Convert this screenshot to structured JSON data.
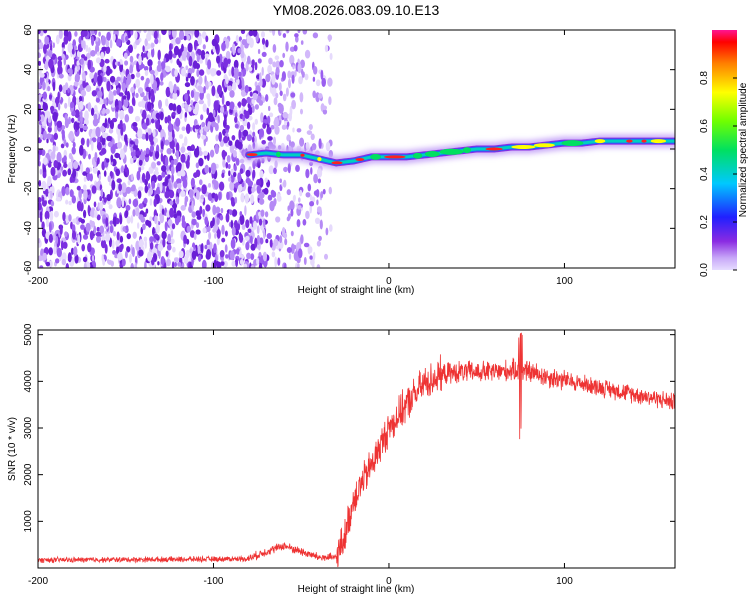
{
  "title": "YM08.2026.083.09.10.E13",
  "chart_data": [
    {
      "type": "heatmap",
      "name": "spectrogram",
      "xlabel": "Height of straight line (km)",
      "ylabel": "Frequency (Hz)",
      "xlim": [
        -200,
        163
      ],
      "ylim": [
        -60,
        60
      ],
      "xticks": [
        -200,
        -100,
        0,
        100
      ],
      "yticks": [
        -60,
        -40,
        -20,
        0,
        20,
        40,
        60
      ],
      "noise_region_x": [
        -200,
        -33
      ],
      "ridge": {
        "x": [
          -80,
          -70,
          -60,
          -50,
          -40,
          -30,
          -20,
          -10,
          0,
          10,
          20,
          30,
          40,
          50,
          60,
          70,
          80,
          90,
          100,
          110,
          120,
          130,
          140,
          150,
          163
        ],
        "y": [
          -3,
          -2,
          -3,
          -3,
          -5,
          -7,
          -6,
          -4,
          -4,
          -4,
          -3,
          -2,
          -1,
          0,
          0,
          1,
          1,
          2,
          3,
          3,
          4,
          4,
          4,
          4,
          4
        ]
      },
      "colorbar": {
        "label": "Normalized spectral amplitude",
        "range": [
          0,
          1
        ],
        "ticks": [
          0.0,
          0.2,
          0.4,
          0.6,
          0.8
        ]
      }
    },
    {
      "type": "line",
      "name": "snr",
      "xlabel": "Height of straight line (km)",
      "ylabel": "SNR (10 * v/v)",
      "xlim": [
        -200,
        163
      ],
      "ylim": [
        0,
        5100
      ],
      "xticks": [
        -200,
        -100,
        0,
        100
      ],
      "yticks": [
        1000,
        2000,
        3000,
        4000,
        5000
      ],
      "color": "#ee3333",
      "trend": {
        "x": [
          -200,
          -150,
          -100,
          -80,
          -70,
          -60,
          -50,
          -40,
          -30,
          -25,
          -20,
          -10,
          0,
          10,
          20,
          30,
          40,
          60,
          75,
          90,
          110,
          130,
          150,
          163
        ],
        "y": [
          170,
          180,
          190,
          200,
          350,
          480,
          350,
          230,
          220,
          700,
          1500,
          2200,
          3000,
          3500,
          3950,
          4150,
          4200,
          4200,
          4250,
          4100,
          3950,
          3800,
          3650,
          3550
        ]
      }
    }
  ]
}
